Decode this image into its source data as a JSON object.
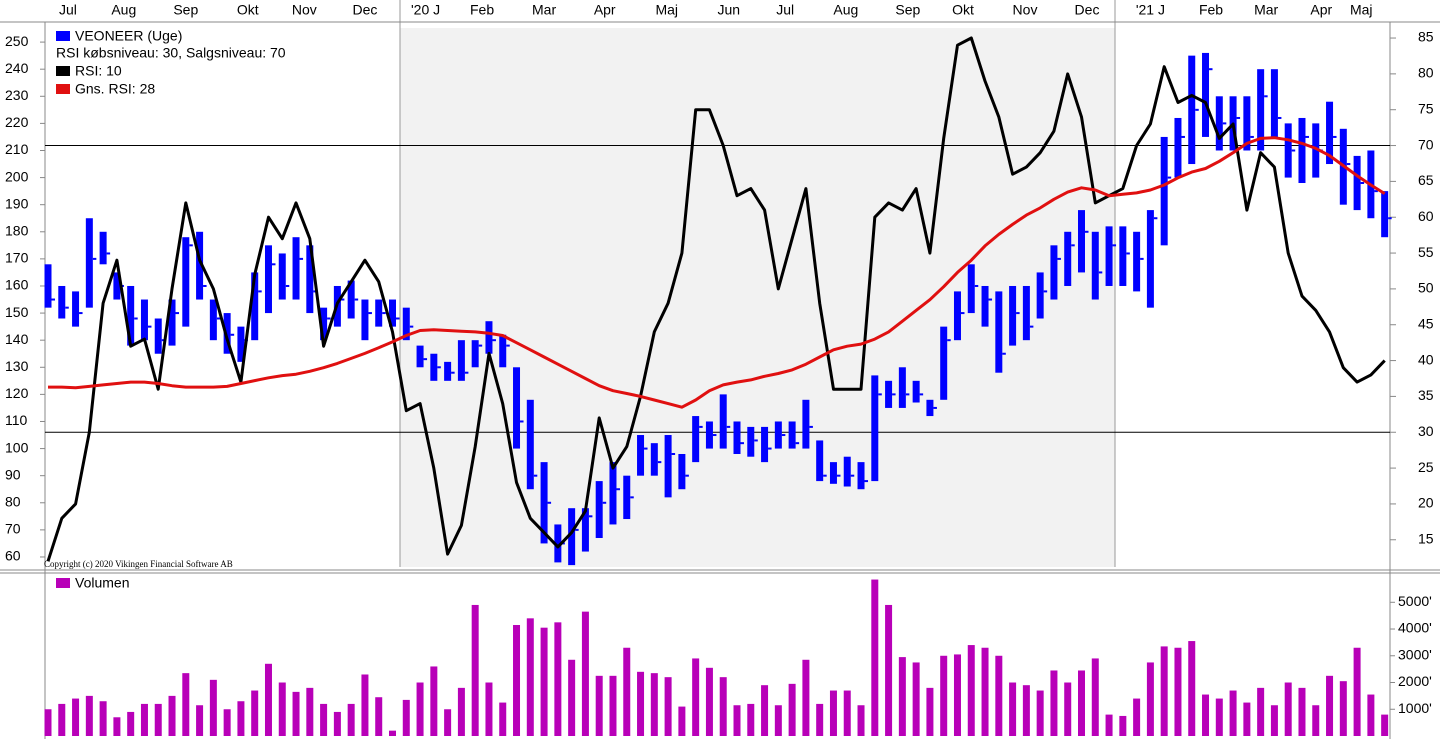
{
  "chart_data": [
    {
      "type": "ohlc",
      "levels_label": "RSI købsniveau: 30, Salgsniveau: 70",
      "levels": [
        30,
        70
      ],
      "copyright": "Copyright (c) 2020 Vikingen Financial Software AB",
      "xticks": [
        {
          "value": 1.45,
          "label": "Jul"
        },
        {
          "value": 5.5,
          "label": "Aug"
        },
        {
          "value": 10,
          "label": "Sep"
        },
        {
          "value": 14.5,
          "label": "Okt"
        },
        {
          "value": 18.6,
          "label": "Nov"
        },
        {
          "value": 23,
          "label": "Dec"
        },
        {
          "value": 27.4,
          "label": "'20 J"
        },
        {
          "value": 31.5,
          "label": "Feb"
        },
        {
          "value": 36,
          "label": "Mar"
        },
        {
          "value": 40.4,
          "label": "Apr"
        },
        {
          "value": 44.9,
          "label": "Maj"
        },
        {
          "value": 49.4,
          "label": "Jun"
        },
        {
          "value": 53.5,
          "label": "Jul"
        },
        {
          "value": 57.9,
          "label": "Aug"
        },
        {
          "value": 62.4,
          "label": "Sep"
        },
        {
          "value": 66.4,
          "label": "Okt"
        },
        {
          "value": 70.9,
          "label": "Nov"
        },
        {
          "value": 75.4,
          "label": "Dec"
        },
        {
          "value": 80,
          "label": "'21 J"
        },
        {
          "value": 84.4,
          "label": "Feb"
        },
        {
          "value": 88.4,
          "label": "Mar"
        },
        {
          "value": 92.4,
          "label": "Apr"
        },
        {
          "value": 95.3,
          "label": "Maj"
        }
      ],
      "ylim": [
        56.3,
        255.2
      ],
      "yticks": [
        60,
        70,
        80,
        90,
        100,
        110,
        120,
        130,
        140,
        150,
        160,
        170,
        180,
        190,
        200,
        210,
        220,
        230,
        240,
        250
      ],
      "y2lim": [
        11.2,
        86.4
      ],
      "y2ticks": [
        15,
        20,
        25,
        30,
        35,
        40,
        45,
        50,
        55,
        60,
        65,
        70,
        75,
        80,
        85
      ],
      "series": [
        {
          "name": "VEONEER (Uge)",
          "color": "#0000ff",
          "high": [
            168,
            160,
            158,
            185,
            180,
            165,
            160,
            155,
            148,
            155,
            178,
            180,
            155,
            150,
            145,
            165,
            175,
            172,
            178,
            175,
            152,
            160,
            162,
            155,
            155,
            155,
            152,
            138,
            135,
            132,
            140,
            140,
            147,
            142,
            130,
            118,
            95,
            72,
            78,
            78,
            88,
            95,
            90,
            105,
            102,
            105,
            98,
            112,
            110,
            120,
            110,
            108,
            108,
            110,
            110,
            118,
            103,
            95,
            97,
            95,
            127,
            125,
            130,
            125,
            118,
            145,
            158,
            168,
            160,
            158,
            160,
            160,
            165,
            175,
            180,
            188,
            180,
            182,
            182,
            180,
            188,
            215,
            222,
            245,
            246,
            230,
            230,
            230,
            240,
            240,
            220,
            222,
            220,
            228,
            218,
            208,
            210,
            195
          ],
          "low": [
            152,
            148,
            145,
            152,
            168,
            155,
            138,
            140,
            135,
            138,
            145,
            155,
            140,
            135,
            132,
            140,
            150,
            155,
            155,
            150,
            140,
            145,
            148,
            140,
            145,
            145,
            140,
            130,
            125,
            125,
            125,
            130,
            135,
            130,
            100,
            85,
            65,
            58,
            57,
            62,
            67,
            72,
            74,
            90,
            90,
            82,
            85,
            95,
            100,
            100,
            98,
            97,
            95,
            100,
            100,
            100,
            88,
            87,
            86,
            85,
            88,
            115,
            115,
            117,
            112,
            118,
            140,
            150,
            145,
            128,
            138,
            140,
            148,
            155,
            160,
            165,
            155,
            160,
            160,
            158,
            152,
            175,
            200,
            205,
            215,
            210,
            210,
            210,
            210,
            215,
            200,
            198,
            200,
            205,
            190,
            188,
            185,
            178
          ],
          "close": [
            155,
            152,
            150,
            170,
            172,
            160,
            148,
            145,
            140,
            150,
            175,
            160,
            148,
            142,
            140,
            158,
            168,
            160,
            170,
            158,
            148,
            155,
            155,
            150,
            150,
            148,
            145,
            133,
            130,
            128,
            128,
            138,
            140,
            138,
            110,
            90,
            80,
            65,
            70,
            75,
            80,
            85,
            82,
            100,
            95,
            98,
            90,
            108,
            105,
            108,
            102,
            103,
            100,
            105,
            102,
            108,
            90,
            90,
            90,
            88,
            120,
            120,
            120,
            120,
            115,
            140,
            150,
            160,
            155,
            135,
            150,
            145,
            158,
            170,
            175,
            180,
            165,
            175,
            172,
            170,
            185,
            200,
            215,
            225,
            240,
            220,
            222,
            215,
            230,
            222,
            210,
            215,
            210,
            215,
            205,
            198,
            195,
            185
          ]
        },
        {
          "name": "RSI: 10",
          "color": "#000000",
          "axis": "y2",
          "values": [
            12,
            18,
            20,
            30,
            48,
            54,
            42,
            43,
            36,
            50,
            62,
            54,
            50,
            43,
            37,
            52,
            60,
            57,
            62,
            57,
            42,
            48,
            51,
            54,
            51,
            44,
            33,
            34,
            25,
            13,
            17,
            28,
            41,
            34,
            23,
            18,
            16,
            14,
            16,
            19,
            32,
            25,
            28,
            35,
            44,
            48,
            55,
            75,
            75,
            70,
            63,
            64,
            61,
            50,
            57,
            64,
            48,
            36,
            36,
            36,
            60,
            62,
            61,
            64,
            55,
            71,
            84,
            85,
            79,
            74,
            66,
            67,
            69,
            72,
            80,
            74,
            62,
            63,
            64,
            70,
            73,
            81,
            76,
            77,
            76,
            71,
            73,
            61,
            69,
            67,
            55,
            49,
            47,
            44,
            39,
            37,
            38,
            40
          ]
        },
        {
          "name": "Gns. RSI: 28",
          "color": "#e01010",
          "axis": "y2",
          "values": [
            36.3,
            36.3,
            36.2,
            36.4,
            36.6,
            36.8,
            37,
            37,
            36.8,
            36.5,
            36.3,
            36.3,
            36.3,
            36.4,
            36.8,
            37.2,
            37.6,
            37.9,
            38.1,
            38.5,
            39,
            39.6,
            40.3,
            41,
            41.8,
            42.6,
            43.5,
            44.2,
            44.3,
            44.2,
            44.1,
            44,
            43.8,
            43.5,
            42.5,
            41.5,
            40.5,
            39.5,
            38.5,
            37.5,
            36.5,
            35.8,
            35.4,
            35,
            34.5,
            34,
            33.5,
            34.5,
            35.8,
            36.6,
            37,
            37.3,
            37.8,
            38.2,
            38.7,
            39.5,
            40.5,
            41.5,
            42,
            42.3,
            43,
            44,
            45.5,
            47,
            48.5,
            50.3,
            52.3,
            54,
            56,
            57.6,
            59,
            60.3,
            61.3,
            62.5,
            63.5,
            64.1,
            63.8,
            63,
            63.2,
            63.4,
            63.8,
            64.5,
            65.5,
            66.3,
            66.8,
            67.8,
            69,
            70.3,
            71,
            71.1,
            70.8,
            70.3,
            69.6,
            68.6,
            67.2,
            65.8,
            64.5,
            63.3
          ]
        }
      ]
    },
    {
      "type": "bar",
      "ylim": [
        0,
        6020
      ],
      "yticks": [
        {
          "value": 1000,
          "label": "1000'"
        },
        {
          "value": 2000,
          "label": "2000'"
        },
        {
          "value": 3000,
          "label": "3000'"
        },
        {
          "value": 4000,
          "label": "4000'"
        },
        {
          "value": 5000,
          "label": "5000'"
        }
      ],
      "series": [
        {
          "name": "Volumen",
          "color": "#b800b8",
          "values": [
            1000,
            1200,
            1400,
            1500,
            1300,
            700,
            900,
            1200,
            1200,
            1500,
            2350,
            1150,
            2100,
            1000,
            1300,
            1700,
            2700,
            2000,
            1650,
            1800,
            1200,
            900,
            1200,
            2300,
            1450,
            200,
            1350,
            2000,
            2600,
            1000,
            1800,
            4900,
            2000,
            1250,
            4150,
            4400,
            4050,
            4250,
            2850,
            4650,
            2250,
            2250,
            3300,
            2400,
            2350,
            2200,
            1100,
            2900,
            2550,
            2200,
            1150,
            1200,
            1900,
            1150,
            1950,
            2850,
            1200,
            1700,
            1700,
            1150,
            5850,
            4900,
            2950,
            2750,
            1800,
            3000,
            3050,
            3400,
            3300,
            3000,
            2000,
            1900,
            1700,
            2450,
            2000,
            2450,
            2900,
            800,
            750,
            1400,
            2750,
            3350,
            3300,
            3550,
            1550,
            1400,
            1700,
            1250,
            1800,
            1150,
            2000,
            1800,
            1150,
            2250,
            2050,
            3300,
            1550,
            800
          ]
        }
      ]
    }
  ]
}
